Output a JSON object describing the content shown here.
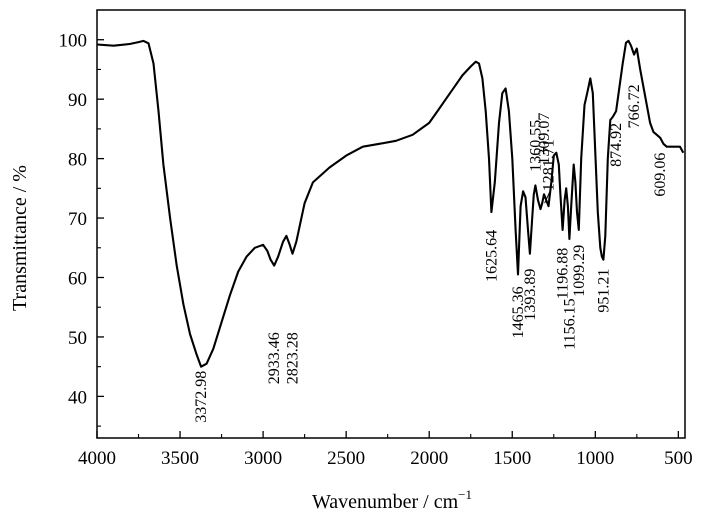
{
  "chart_data": {
    "type": "line",
    "title": "",
    "xlabel": "Wavenumber / cm",
    "xlabel_sup": "−1",
    "ylabel": "Transmittance / %",
    "xlim": [
      4000,
      460
    ],
    "x_reversed": true,
    "ylim": [
      33,
      105
    ],
    "xticks": [
      4000,
      3500,
      3000,
      2500,
      2000,
      1500,
      1000,
      500
    ],
    "yticks": [
      40,
      50,
      60,
      70,
      80,
      90,
      100
    ],
    "grid": false,
    "legend": "none",
    "line_color": "#000000",
    "series": [
      {
        "x": [
          4000,
          3900,
          3800,
          3750,
          3720,
          3690,
          3660,
          3630,
          3600,
          3560,
          3520,
          3480,
          3440,
          3400,
          3372.98,
          3340,
          3300,
          3250,
          3200,
          3150,
          3100,
          3050,
          3000,
          2975,
          2955,
          2933.46,
          2910,
          2880,
          2860,
          2840,
          2823.28,
          2800,
          2750,
          2700,
          2600,
          2500,
          2400,
          2300,
          2200,
          2100,
          2000,
          1950,
          1900,
          1850,
          1800,
          1750,
          1720,
          1700,
          1680,
          1660,
          1640,
          1625.64,
          1605,
          1580,
          1560,
          1540,
          1520,
          1500,
          1480,
          1465.36,
          1450,
          1435,
          1420,
          1405,
          1393.89,
          1380,
          1370,
          1360.55,
          1345,
          1330,
          1320,
          1309.07,
          1295,
          1281.71,
          1265,
          1250,
          1235,
          1220,
          1210,
          1196.88,
          1185,
          1175,
          1165,
          1156.15,
          1145,
          1130,
          1120,
          1110,
          1099.29,
          1085,
          1065,
          1045,
          1030,
          1015,
          1000,
          985,
          970,
          960,
          951.21,
          940,
          925,
          910,
          895,
          874.92,
          855,
          835,
          815,
          800,
          785,
          766.72,
          750,
          730,
          710,
          690,
          670,
          650,
          630,
          609.06,
          590,
          570,
          550,
          530,
          510,
          490,
          470
        ],
        "y": [
          99.2,
          99.0,
          99.3,
          99.6,
          99.8,
          99.4,
          96.0,
          88.0,
          79.0,
          70.0,
          62.0,
          55.5,
          50.5,
          47.0,
          45.0,
          45.5,
          48.0,
          52.5,
          57.0,
          61.0,
          63.5,
          65.0,
          65.5,
          64.5,
          63.0,
          62.0,
          63.5,
          66.0,
          67.0,
          65.5,
          64.0,
          66.0,
          72.5,
          76.0,
          78.5,
          80.5,
          82.0,
          82.5,
          83.0,
          84.0,
          86.0,
          88.0,
          90.0,
          92.0,
          94.0,
          95.5,
          96.3,
          96.0,
          93.5,
          88.0,
          80.0,
          71.0,
          76.0,
          86.0,
          91.0,
          91.8,
          88.0,
          80.0,
          68.0,
          60.5,
          72.0,
          74.5,
          73.5,
          68.0,
          64.0,
          70.0,
          74.0,
          75.5,
          73.0,
          71.5,
          72.5,
          74.0,
          73.0,
          72.0,
          76.0,
          80.5,
          81.0,
          79.0,
          74.0,
          68.0,
          73.0,
          75.0,
          72.0,
          66.5,
          72.0,
          79.0,
          76.0,
          71.0,
          68.0,
          80.0,
          89.0,
          91.5,
          93.5,
          91.0,
          81.0,
          71.0,
          65.0,
          63.5,
          63.0,
          67.0,
          80.0,
          86.5,
          87.0,
          88.0,
          92.0,
          96.0,
          99.5,
          99.8,
          99.0,
          97.5,
          98.5,
          95.0,
          92.0,
          89.0,
          86.0,
          84.5,
          84.0,
          83.5,
          82.5,
          82.0,
          82.0,
          82.0,
          82.0,
          82.0,
          81.0
        ]
      }
    ],
    "annotations": [
      {
        "text": "3372.98",
        "x": 3372.98,
        "y": 44.3,
        "anchor": "end"
      },
      {
        "text": "2933.46",
        "x": 2933.46,
        "y": 50.8,
        "anchor": "end"
      },
      {
        "text": "2823.28",
        "x": 2823.28,
        "y": 50.8,
        "anchor": "end"
      },
      {
        "text": "1625.64",
        "x": 1625.64,
        "y": 68.0,
        "anchor": "end"
      },
      {
        "text": "1465.36",
        "x": 1465.36,
        "y": 58.5,
        "anchor": "end"
      },
      {
        "text": "1393.89",
        "x": 1393.89,
        "y": 61.5,
        "anchor": "end"
      },
      {
        "text": "1360.55",
        "x": 1360.55,
        "y": 77.8,
        "anchor": "start"
      },
      {
        "text": "1309.07",
        "x": 1309.07,
        "y": 79.0,
        "anchor": "start"
      },
      {
        "text": "1281.71",
        "x": 1281.71,
        "y": 74.5,
        "anchor": "start"
      },
      {
        "text": "1196.88",
        "x": 1196.88,
        "y": 65.0,
        "anchor": "end"
      },
      {
        "text": "1156.15",
        "x": 1156.15,
        "y": 56.5,
        "anchor": "end"
      },
      {
        "text": "1099.29",
        "x": 1099.29,
        "y": 65.5,
        "anchor": "end"
      },
      {
        "text": "951.21",
        "x": 951.21,
        "y": 61.5,
        "anchor": "end"
      },
      {
        "text": "874.92",
        "x": 874.92,
        "y": 86.0,
        "anchor": "end"
      },
      {
        "text": "766.72",
        "x": 766.72,
        "y": 92.5,
        "anchor": "end"
      },
      {
        "text": "609.06",
        "x": 609.06,
        "y": 81.0,
        "anchor": "end"
      }
    ]
  }
}
